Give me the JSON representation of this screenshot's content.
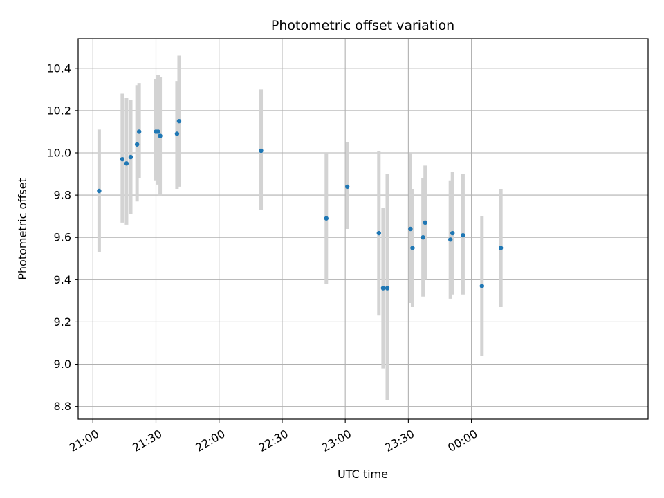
{
  "chart_data": {
    "type": "scatter",
    "title": "Photometric offset variation",
    "xlabel": "UTC time",
    "ylabel": "Photometric offset",
    "x_tick_labels": [
      "21:00",
      "21:30",
      "22:00",
      "22:30",
      "23:00",
      "23:30",
      "00:00"
    ],
    "y_tick_labels": [
      "8.8",
      "9.0",
      "9.2",
      "9.4",
      "9.6",
      "9.8",
      "10.0",
      "10.2",
      "10.4"
    ],
    "xlim": [
      "20:53",
      "01:24"
    ],
    "ylim": [
      8.74,
      10.54
    ],
    "grid": true,
    "colors": {
      "point": "#1f77b4",
      "errorbar": "#d3d3d3",
      "grid": "#b0b0b0"
    },
    "points": [
      {
        "x": "21:03",
        "y": 9.82,
        "ylo": 9.53,
        "yhi": 10.11
      },
      {
        "x": "21:14",
        "y": 9.97,
        "ylo": 9.67,
        "yhi": 10.28
      },
      {
        "x": "21:16",
        "y": 9.95,
        "ylo": 9.66,
        "yhi": 10.26
      },
      {
        "x": "21:18",
        "y": 9.98,
        "ylo": 9.71,
        "yhi": 10.25
      },
      {
        "x": "21:21",
        "y": 10.04,
        "ylo": 9.77,
        "yhi": 10.32
      },
      {
        "x": "21:22",
        "y": 10.1,
        "ylo": 9.88,
        "yhi": 10.33
      },
      {
        "x": "21:30",
        "y": 10.1,
        "ylo": 9.87,
        "yhi": 10.35
      },
      {
        "x": "21:31",
        "y": 10.1,
        "ylo": 9.85,
        "yhi": 10.37
      },
      {
        "x": "21:32",
        "y": 10.08,
        "ylo": 9.8,
        "yhi": 10.36
      },
      {
        "x": "21:40",
        "y": 10.09,
        "ylo": 9.83,
        "yhi": 10.34
      },
      {
        "x": "21:41",
        "y": 10.15,
        "ylo": 9.84,
        "yhi": 10.46
      },
      {
        "x": "22:20",
        "y": 10.01,
        "ylo": 9.73,
        "yhi": 10.3
      },
      {
        "x": "22:51",
        "y": 9.69,
        "ylo": 9.38,
        "yhi": 10.0
      },
      {
        "x": "23:01",
        "y": 9.84,
        "ylo": 9.64,
        "yhi": 10.05
      },
      {
        "x": "23:16",
        "y": 9.62,
        "ylo": 9.23,
        "yhi": 10.01
      },
      {
        "x": "23:18",
        "y": 9.36,
        "ylo": 8.98,
        "yhi": 9.74
      },
      {
        "x": "23:20",
        "y": 9.36,
        "ylo": 8.83,
        "yhi": 9.9
      },
      {
        "x": "23:31",
        "y": 9.64,
        "ylo": 9.29,
        "yhi": 10.0
      },
      {
        "x": "23:32",
        "y": 9.55,
        "ylo": 9.27,
        "yhi": 9.83
      },
      {
        "x": "23:37",
        "y": 9.6,
        "ylo": 9.32,
        "yhi": 9.88
      },
      {
        "x": "23:38",
        "y": 9.67,
        "ylo": 9.4,
        "yhi": 9.94
      },
      {
        "x": "23:50",
        "y": 9.59,
        "ylo": 9.31,
        "yhi": 9.87
      },
      {
        "x": "23:51",
        "y": 9.62,
        "ylo": 9.33,
        "yhi": 9.91
      },
      {
        "x": "23:56",
        "y": 9.61,
        "ylo": 9.33,
        "yhi": 9.9
      },
      {
        "x": "00:05",
        "y": 9.37,
        "ylo": 9.04,
        "yhi": 9.7
      },
      {
        "x": "00:14",
        "y": 9.55,
        "ylo": 9.27,
        "yhi": 9.83
      }
    ]
  }
}
